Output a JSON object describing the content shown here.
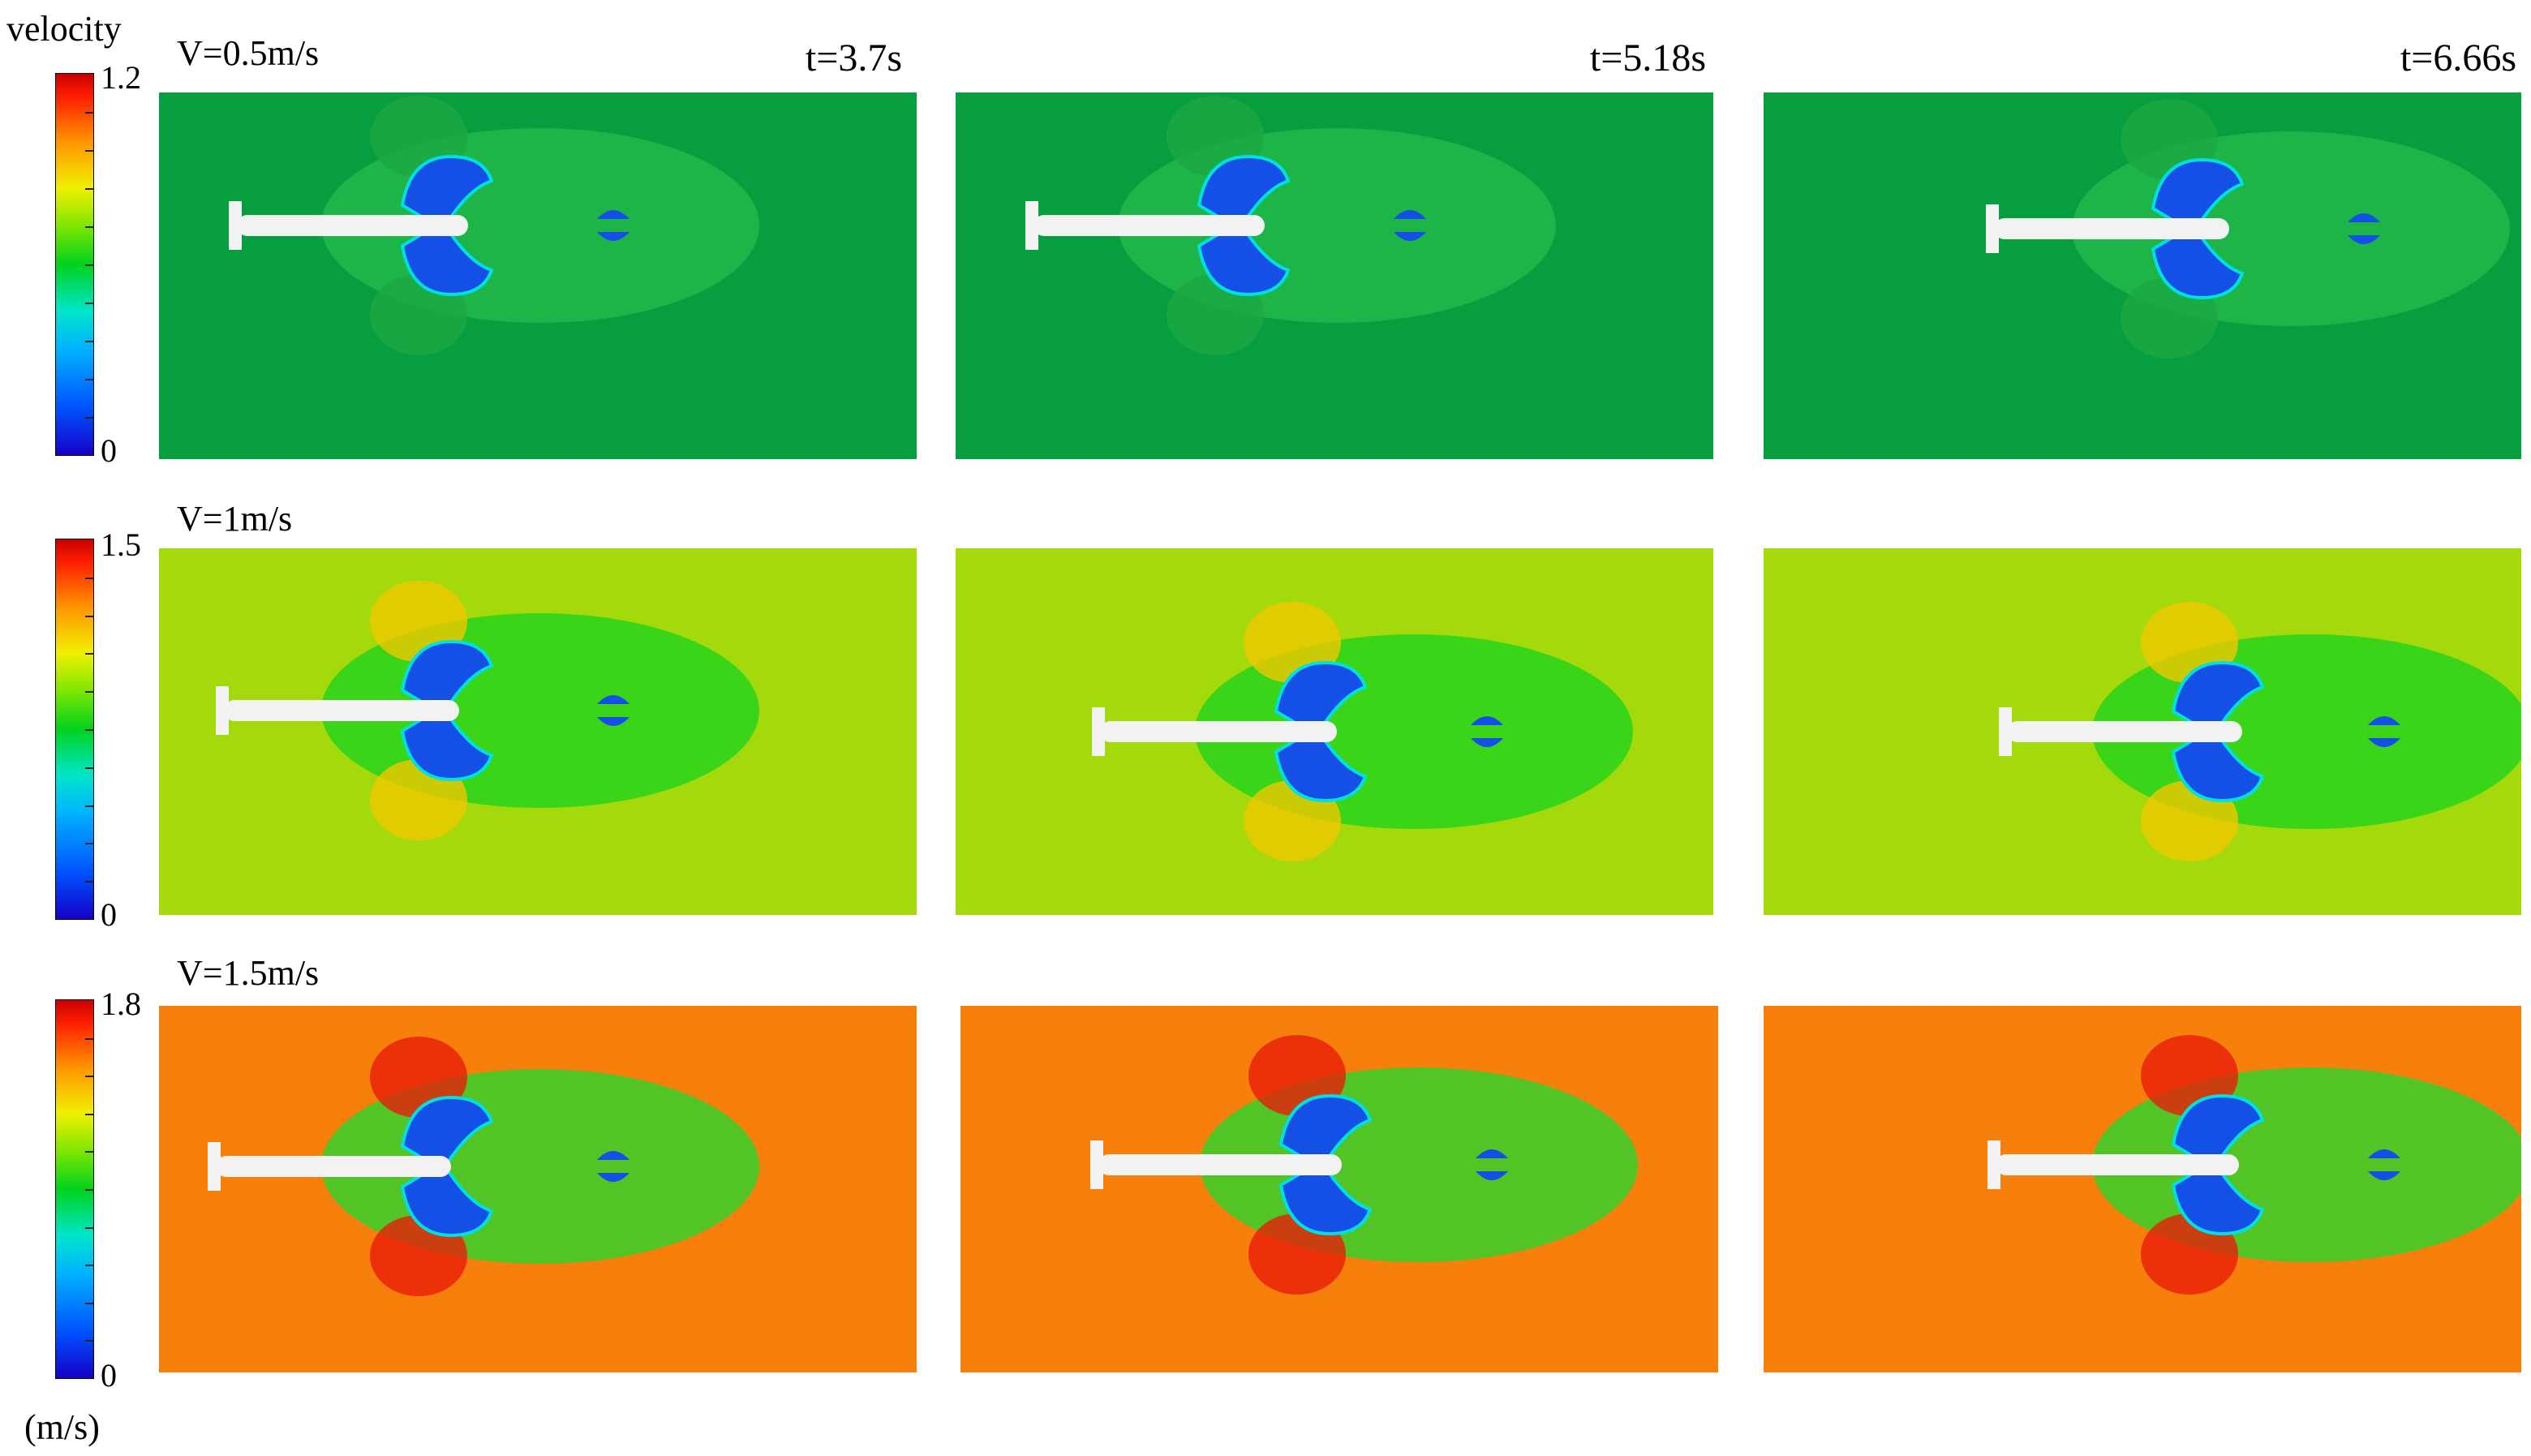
{
  "colorbar_title": "velocity",
  "unit_label": "(m/s)",
  "time_labels": [
    "t=3.7s",
    "t=5.18s",
    "t=6.66s"
  ],
  "rows": [
    {
      "speed_label": "V=0.5m/s",
      "cb_max": "1.2",
      "cb_min": "0",
      "background": "#069e3e",
      "field_color": "#22b84a",
      "highlight_color": "#1ca844"
    },
    {
      "speed_label": "V=1m/s",
      "cb_max": "1.5",
      "cb_min": "0",
      "background": "#a4da0c",
      "field_color": "#28d21c",
      "highlight_color": "#f0c800"
    },
    {
      "speed_label": "V=1.5m/s",
      "cb_max": "1.8",
      "cb_min": "0",
      "background": "#f77f0b",
      "field_color": "#36d02a",
      "highlight_color": "#e81e0a"
    }
  ],
  "colors": {
    "hull": "#f2f2f2",
    "vortex": "#1450e6",
    "vortex_edge": "#00e0e0"
  }
}
